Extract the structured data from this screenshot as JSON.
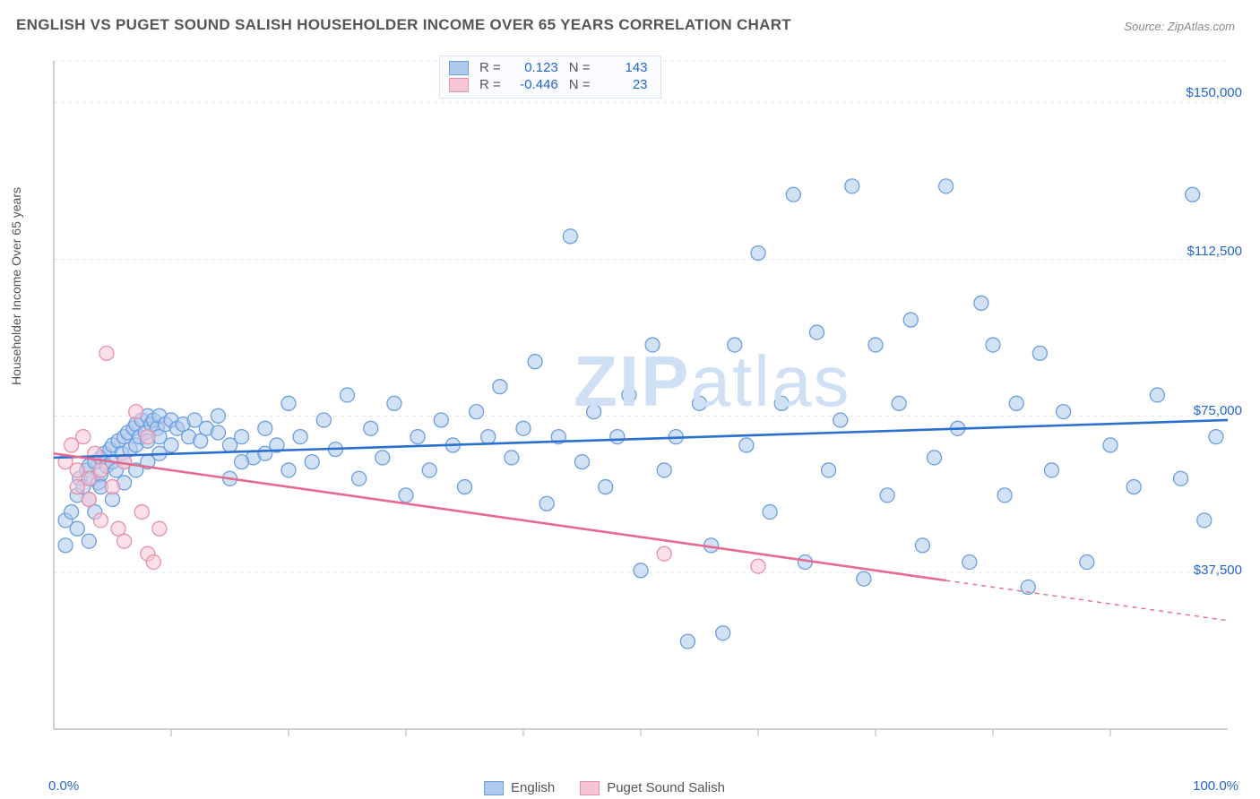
{
  "title": "ENGLISH VS PUGET SOUND SALISH HOUSEHOLDER INCOME OVER 65 YEARS CORRELATION CHART",
  "source": "Source: ZipAtlas.com",
  "ylabel": "Householder Income Over 65 years",
  "watermark_a": "ZIP",
  "watermark_b": "atlas",
  "chart": {
    "type": "scatter-with-regression",
    "background_color": "#ffffff",
    "grid_color": "#e6e6e6",
    "axis_color": "#bfbfbf",
    "tick_color": "#2266cc",
    "xlim": [
      0,
      100
    ],
    "ylim": [
      0,
      160000
    ],
    "xticks": [
      {
        "v": 0,
        "label": "0.0%"
      },
      {
        "v": 100,
        "label": "100.0%"
      }
    ],
    "yticks": [
      {
        "v": 37500,
        "label": "$37,500"
      },
      {
        "v": 75000,
        "label": "$75,000"
      },
      {
        "v": 112500,
        "label": "$112,500"
      },
      {
        "v": 150000,
        "label": "$150,000"
      }
    ],
    "xgrid_minor": [
      10,
      20,
      30,
      40,
      50,
      60,
      70,
      80,
      90
    ],
    "marker_radius": 8,
    "marker_stroke_width": 1.3,
    "line_width": 2.6,
    "series": [
      {
        "name": "English",
        "fill": "#aec9ec",
        "stroke": "#6a9fde",
        "line_color": "#2b6fd0",
        "fill_opacity": 0.55,
        "R": "0.123",
        "N": "143",
        "regression": {
          "y_at_x0": 65000,
          "y_at_x100": 74000,
          "solid_until": 100
        },
        "points": [
          [
            1,
            44000
          ],
          [
            1,
            50000
          ],
          [
            1.5,
            52000
          ],
          [
            2,
            48000
          ],
          [
            2,
            56000
          ],
          [
            2.2,
            60000
          ],
          [
            2.5,
            58000
          ],
          [
            2.8,
            62000
          ],
          [
            3,
            55000
          ],
          [
            3,
            63000
          ],
          [
            3.2,
            60000
          ],
          [
            3.5,
            64000
          ],
          [
            3.8,
            59000
          ],
          [
            4,
            65000
          ],
          [
            4,
            61000
          ],
          [
            4.3,
            66000
          ],
          [
            4.5,
            63000
          ],
          [
            4.8,
            67000
          ],
          [
            5,
            64000
          ],
          [
            5,
            68000
          ],
          [
            5.3,
            62000
          ],
          [
            5.5,
            69000
          ],
          [
            5.8,
            66000
          ],
          [
            6,
            70000
          ],
          [
            6,
            64000
          ],
          [
            6.3,
            71000
          ],
          [
            6.5,
            67000
          ],
          [
            6.8,
            72000
          ],
          [
            7,
            68000
          ],
          [
            7,
            73000
          ],
          [
            7.3,
            70000
          ],
          [
            7.5,
            74000
          ],
          [
            7.8,
            71000
          ],
          [
            8,
            75000
          ],
          [
            8,
            69000
          ],
          [
            8.3,
            73000
          ],
          [
            8.5,
            74000
          ],
          [
            8.8,
            72000
          ],
          [
            9,
            75000
          ],
          [
            9,
            70000
          ],
          [
            9.5,
            73000
          ],
          [
            10,
            74000
          ],
          [
            10,
            68000
          ],
          [
            10.5,
            72000
          ],
          [
            11,
            73000
          ],
          [
            11.5,
            70000
          ],
          [
            12,
            74000
          ],
          [
            12.5,
            69000
          ],
          [
            13,
            72000
          ],
          [
            14,
            71000
          ],
          [
            15,
            68000
          ],
          [
            15,
            60000
          ],
          [
            16,
            70000
          ],
          [
            17,
            65000
          ],
          [
            18,
            72000
          ],
          [
            19,
            68000
          ],
          [
            20,
            78000
          ],
          [
            20,
            62000
          ],
          [
            21,
            70000
          ],
          [
            22,
            64000
          ],
          [
            23,
            74000
          ],
          [
            24,
            67000
          ],
          [
            25,
            80000
          ],
          [
            26,
            60000
          ],
          [
            27,
            72000
          ],
          [
            28,
            65000
          ],
          [
            29,
            78000
          ],
          [
            30,
            56000
          ],
          [
            31,
            70000
          ],
          [
            32,
            62000
          ],
          [
            33,
            74000
          ],
          [
            34,
            68000
          ],
          [
            35,
            58000
          ],
          [
            36,
            76000
          ],
          [
            37,
            70000
          ],
          [
            38,
            82000
          ],
          [
            39,
            65000
          ],
          [
            40,
            72000
          ],
          [
            41,
            88000
          ],
          [
            42,
            54000
          ],
          [
            43,
            70000
          ],
          [
            44,
            118000
          ],
          [
            45,
            64000
          ],
          [
            46,
            76000
          ],
          [
            47,
            58000
          ],
          [
            48,
            70000
          ],
          [
            49,
            80000
          ],
          [
            50,
            38000
          ],
          [
            51,
            92000
          ],
          [
            52,
            62000
          ],
          [
            53,
            70000
          ],
          [
            54,
            21000
          ],
          [
            55,
            78000
          ],
          [
            56,
            44000
          ],
          [
            57,
            23000
          ],
          [
            58,
            92000
          ],
          [
            59,
            68000
          ],
          [
            60,
            114000
          ],
          [
            61,
            52000
          ],
          [
            62,
            78000
          ],
          [
            63,
            128000
          ],
          [
            64,
            40000
          ],
          [
            65,
            95000
          ],
          [
            66,
            62000
          ],
          [
            67,
            74000
          ],
          [
            68,
            130000
          ],
          [
            69,
            36000
          ],
          [
            70,
            92000
          ],
          [
            71,
            56000
          ],
          [
            72,
            78000
          ],
          [
            73,
            98000
          ],
          [
            74,
            44000
          ],
          [
            75,
            65000
          ],
          [
            76,
            130000
          ],
          [
            77,
            72000
          ],
          [
            78,
            40000
          ],
          [
            79,
            102000
          ],
          [
            80,
            92000
          ],
          [
            81,
            56000
          ],
          [
            82,
            78000
          ],
          [
            83,
            34000
          ],
          [
            84,
            90000
          ],
          [
            85,
            62000
          ],
          [
            86,
            76000
          ],
          [
            88,
            40000
          ],
          [
            90,
            68000
          ],
          [
            92,
            58000
          ],
          [
            94,
            80000
          ],
          [
            96,
            60000
          ],
          [
            97,
            128000
          ],
          [
            98,
            50000
          ],
          [
            99,
            70000
          ],
          [
            3,
            45000
          ],
          [
            3.5,
            52000
          ],
          [
            4,
            58000
          ],
          [
            5,
            55000
          ],
          [
            6,
            59000
          ],
          [
            7,
            62000
          ],
          [
            8,
            64000
          ],
          [
            9,
            66000
          ],
          [
            14,
            75000
          ],
          [
            16,
            64000
          ],
          [
            18,
            66000
          ]
        ]
      },
      {
        "name": "Puget Sound Salish",
        "fill": "#f7c6d4",
        "stroke": "#e88fa9",
        "line_color": "#e46b8f",
        "fill_opacity": 0.55,
        "R": "-0.446",
        "N": "23",
        "regression": {
          "y_at_x0": 66000,
          "y_at_x100": 26000,
          "solid_until": 76
        },
        "points": [
          [
            1,
            64000
          ],
          [
            1.5,
            68000
          ],
          [
            2,
            62000
          ],
          [
            2,
            58000
          ],
          [
            2.5,
            70000
          ],
          [
            3,
            60000
          ],
          [
            3,
            55000
          ],
          [
            3.5,
            66000
          ],
          [
            4,
            62000
          ],
          [
            4,
            50000
          ],
          [
            4.5,
            90000
          ],
          [
            5,
            58000
          ],
          [
            5.5,
            48000
          ],
          [
            6,
            64000
          ],
          [
            6,
            45000
          ],
          [
            7,
            76000
          ],
          [
            7.5,
            52000
          ],
          [
            8,
            42000
          ],
          [
            8,
            70000
          ],
          [
            8.5,
            40000
          ],
          [
            9,
            48000
          ],
          [
            52,
            42000
          ],
          [
            60,
            39000
          ]
        ]
      }
    ]
  },
  "legend_top": [
    {
      "swatch_fill": "#aec9ec",
      "swatch_stroke": "#6a9fde",
      "r_label": "R =",
      "r_val": "0.123",
      "n_label": "N =",
      "n_val": "143"
    },
    {
      "swatch_fill": "#f7c6d4",
      "swatch_stroke": "#e88fa9",
      "r_label": "R =",
      "r_val": "-0.446",
      "n_label": "N =",
      "n_val": "23"
    }
  ],
  "legend_bottom": [
    {
      "swatch_fill": "#aec9ec",
      "swatch_stroke": "#6a9fde",
      "label": "English"
    },
    {
      "swatch_fill": "#f7c6d4",
      "swatch_stroke": "#e88fa9",
      "label": "Puget Sound Salish"
    }
  ]
}
